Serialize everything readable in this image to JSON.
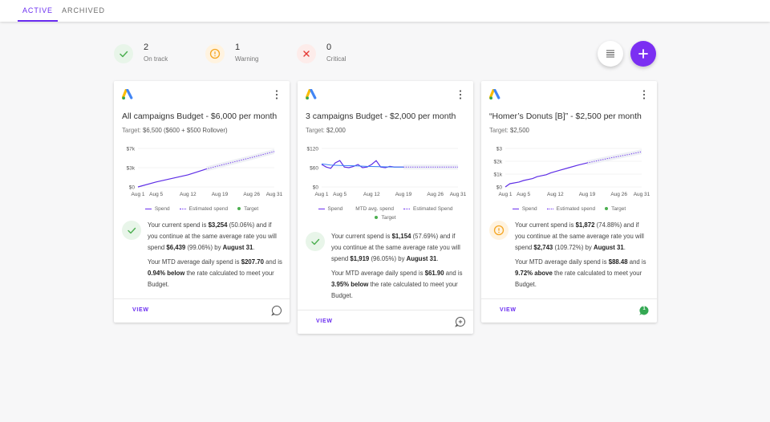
{
  "tabs": [
    {
      "label": "ACTIVE",
      "active": true
    },
    {
      "label": "ARCHIVED",
      "active": false
    }
  ],
  "stats": [
    {
      "count": "2",
      "label": "On track",
      "color": "#4caf50",
      "bg": "#e8f5e9"
    },
    {
      "count": "1",
      "label": "Warning",
      "color": "#f5a623",
      "bg": "#fff3e0"
    },
    {
      "count": "0",
      "label": "Critical",
      "color": "#e53935",
      "bg": "#fdecea"
    }
  ],
  "colors": {
    "accent": "#6a2df0",
    "spend": "#6a2df0",
    "target": "#4caf50"
  },
  "cards": [
    {
      "title": "All campaigns Budget - $6,000 per month",
      "target_label": "Target:",
      "target_value": "$6,500 ($600 + $500 Rollover)",
      "legend": [
        "Spend",
        "Estimated spend",
        "Target"
      ],
      "status": "ok",
      "p1": [
        "Your current spend is ",
        "$3,254",
        " (50.06%) and if you continue at the same average rate you will spend ",
        "$6,439",
        " (99.06%) by ",
        "August 31",
        "."
      ],
      "p2": [
        "Your MTD average daily spend is ",
        "$207.70",
        " and is ",
        "0.94% below",
        " the rate calculated to meet your Budget."
      ],
      "view_label": "VIEW",
      "comment_icon": "comment-icon"
    },
    {
      "title": "3 campaigns Budget - $2,000 per month",
      "target_label": "Target:",
      "target_value": "$2,000",
      "legend": [
        "Spend",
        "MTD avg. spend",
        "Estimated Spend",
        "Target"
      ],
      "status": "ok",
      "p1": [
        "Your current spend is ",
        "$1,154",
        " (57.69%) and if you continue at the same average rate you will spend ",
        "$1,919",
        " (96.05%) by ",
        "August 31",
        "."
      ],
      "p2": [
        "Your MTD average daily spend is ",
        "$61.90",
        " and is ",
        "3.95% below",
        " the rate calculated to meet your Budget."
      ],
      "view_label": "VIEW",
      "comment_icon": "comment-add-icon"
    },
    {
      "title": "“Homer’s Donuts [B]” - $2,500 per month",
      "target_label": "Target:",
      "target_value": "$2,500",
      "legend": [
        "Spend",
        "Estimated spend",
        "Target"
      ],
      "status": "warning",
      "p1": [
        "Your current spend is ",
        "$1,872",
        " (74.88%) and if you continue at the same average rate you will spend ",
        "$2,743",
        " (109.72%) by ",
        "August 31",
        "."
      ],
      "p2": [
        "Your MTD average daily spend is ",
        "$88.48",
        " and is ",
        "9.72% above",
        " the rate calculated to meet your Budget."
      ],
      "view_label": "VIEW",
      "comment_icon": "comment-count-icon",
      "comment_count": "1"
    }
  ],
  "chart_data": [
    {
      "type": "line",
      "categories": [
        "Aug 1",
        "Aug 5",
        "Aug 12",
        "Aug 19",
        "Aug 26",
        "Aug 31"
      ],
      "y_ticks": [
        "$0",
        "$3k",
        "$7k"
      ],
      "ylim": [
        0,
        7000
      ],
      "series": [
        {
          "name": "Spend",
          "style": "solid",
          "x": [
            1,
            5,
            12,
            16
          ],
          "y": [
            0,
            900,
            2200,
            3254
          ]
        },
        {
          "name": "Estimated spend",
          "style": "dotted",
          "x": [
            16,
            19,
            26,
            31
          ],
          "y": [
            3254,
            3900,
            5350,
            6439
          ]
        }
      ]
    },
    {
      "type": "line",
      "categories": [
        "Aug 1",
        "Aug 5",
        "Aug 12",
        "Aug 19",
        "Aug 26",
        "Aug 31"
      ],
      "y_ticks": [
        "$0",
        "$60",
        "$120"
      ],
      "ylim": [
        0,
        120
      ],
      "series": [
        {
          "name": "Spend",
          "style": "solid",
          "x": [
            1,
            2,
            3,
            4,
            5,
            6,
            7,
            8,
            9,
            10,
            11,
            12,
            13,
            14,
            15,
            16,
            17,
            18,
            19
          ],
          "y": [
            70,
            62,
            58,
            75,
            82,
            62,
            60,
            64,
            70,
            60,
            62,
            70,
            82,
            62,
            60,
            64,
            62,
            62,
            62
          ]
        },
        {
          "name": "MTD avg. spend",
          "style": "solid",
          "x": [
            1,
            3,
            5,
            8,
            11,
            14,
            17,
            19
          ],
          "y": [
            72,
            68,
            67,
            66,
            64,
            63,
            62,
            62
          ]
        },
        {
          "name": "Estimated Spend",
          "style": "dotted",
          "x": [
            19,
            25,
            31
          ],
          "y": [
            62,
            62,
            62
          ]
        }
      ]
    },
    {
      "type": "line",
      "categories": [
        "Aug 1",
        "Aug 5",
        "Aug 12",
        "Aug 19",
        "Aug 26",
        "Aug 31"
      ],
      "y_ticks": [
        "$0",
        "$1k",
        "$2k",
        "$3"
      ],
      "ylim": [
        0,
        3000
      ],
      "series": [
        {
          "name": "Spend",
          "style": "solid",
          "x": [
            1,
            2,
            4,
            5,
            7,
            8,
            10,
            11,
            13,
            15,
            17,
            19
          ],
          "y": [
            0,
            250,
            380,
            500,
            650,
            800,
            950,
            1100,
            1300,
            1500,
            1700,
            1872
          ]
        },
        {
          "name": "Estimated spend",
          "style": "dotted",
          "x": [
            19,
            24,
            28,
            31
          ],
          "y": [
            1872,
            2250,
            2520,
            2743
          ]
        }
      ]
    }
  ]
}
